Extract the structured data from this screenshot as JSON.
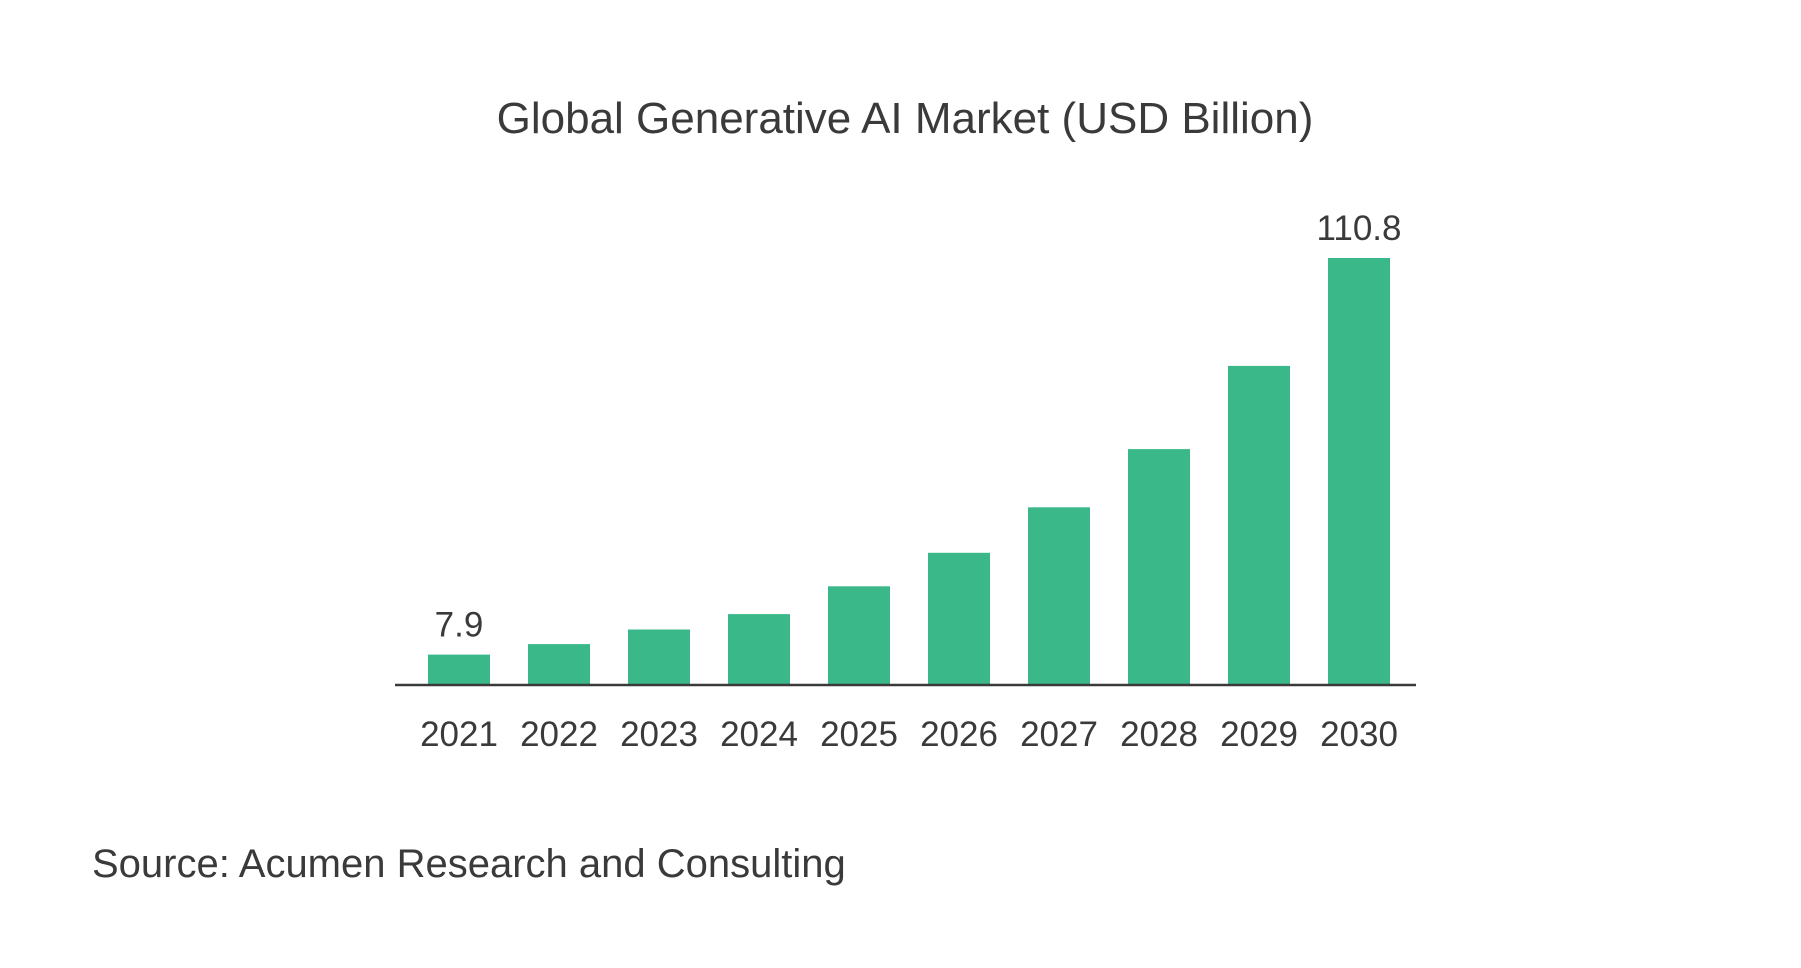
{
  "chart_data": {
    "type": "bar",
    "title": "Global Generative AI Market (USD Billion)",
    "xlabel": "",
    "ylabel": "",
    "categories": [
      "2021",
      "2022",
      "2023",
      "2024",
      "2025",
      "2026",
      "2027",
      "2028",
      "2029",
      "2030"
    ],
    "values": [
      7.9,
      10.6,
      14.4,
      18.4,
      25.6,
      34.3,
      46.1,
      61.2,
      82.8,
      110.8
    ],
    "data_labels": [
      {
        "category": "2021",
        "text": "7.9"
      },
      {
        "category": "2030",
        "text": "110.8"
      }
    ],
    "ylim": [
      0,
      110.8
    ],
    "grid": false,
    "legend": "none",
    "colors": {
      "bar": "#3ab889",
      "text": "#3a3a3a",
      "axis": "#3a3a3a"
    }
  },
  "source": "Source: Acumen Research and Consulting"
}
